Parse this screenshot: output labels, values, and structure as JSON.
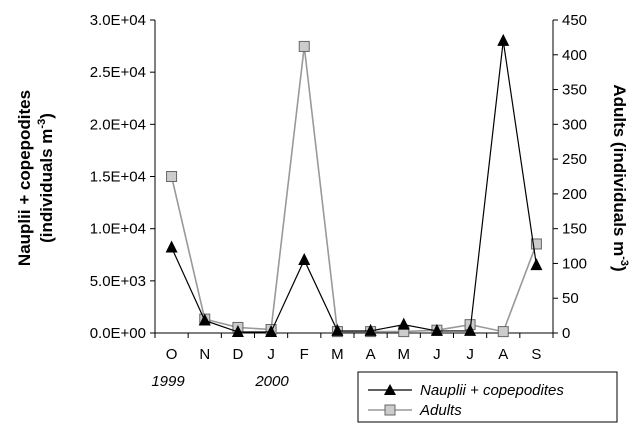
{
  "chart_data": {
    "type": "line",
    "categories": [
      "O",
      "N",
      "D",
      "J",
      "F",
      "M",
      "A",
      "M",
      "J",
      "J",
      "A",
      "S"
    ],
    "year_labels": [
      "1999",
      "2000"
    ],
    "left_axis": {
      "label_main": "Nauplii + copepodites",
      "label_unit_prefix": "(individuals m",
      "label_unit_exp": "-3",
      "label_unit_suffix": ")",
      "ylim": [
        0,
        30000
      ],
      "ticks": [
        "0.0E+00",
        "5.0E+03",
        "1.0E+04",
        "1.5E+04",
        "2.0E+04",
        "2.5E+04",
        "3.0E+04"
      ]
    },
    "right_axis": {
      "label_prefix": "Adults (individuals m",
      "label_exp": "-3",
      "label_suffix": ")",
      "ylim": [
        0,
        450
      ],
      "ticks": [
        "0",
        "50",
        "100",
        "150",
        "200",
        "250",
        "300",
        "350",
        "400",
        "450"
      ]
    },
    "series": [
      {
        "name": "Nauplii + copepodites",
        "axis": "left",
        "marker": "triangle",
        "color": "#000000",
        "values": [
          8200,
          1200,
          100,
          100,
          7000,
          200,
          200,
          800,
          200,
          200,
          28000,
          6500
        ]
      },
      {
        "name": "Adults",
        "axis": "right",
        "marker": "square",
        "color": "#999999",
        "values": [
          225,
          20,
          8,
          5,
          412,
          2,
          2,
          2,
          4,
          12,
          2,
          128
        ]
      }
    ],
    "legend_position": "bottom-right",
    "grid": false
  }
}
